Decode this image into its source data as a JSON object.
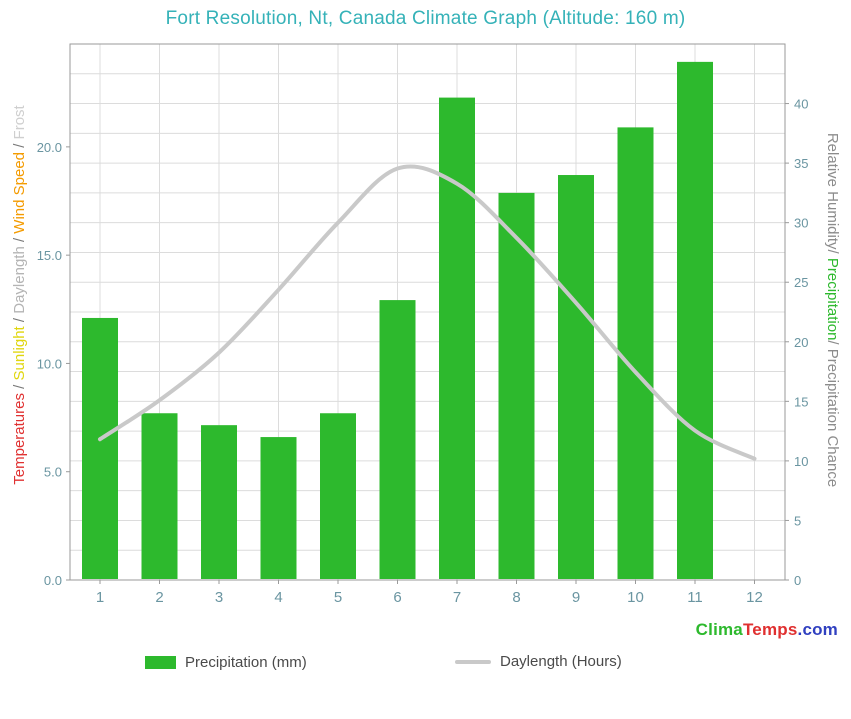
{
  "title": "Fort Resolution, Nt, Canada Climate Graph (Altitude: 160 m)",
  "logo": {
    "segments": [
      {
        "text": "Clima",
        "color": "#2db92d"
      },
      {
        "text": "Temps",
        "color": "#e03030"
      },
      {
        "text": ".com",
        "color": "#3040c0"
      }
    ]
  },
  "colors": {
    "title": "#35b2b8",
    "bar": "#2db92d",
    "line": "#c9c9c9",
    "grid": "#dcdcdc",
    "plot_border": "#9a9a9a",
    "tick_text": "#6a95a1",
    "legend_text": "#4a4a4a",
    "background": "#ffffff"
  },
  "left_axis": {
    "tick_labels": [
      "0.0",
      "5.0",
      "10.0",
      "15.0",
      "20.0"
    ],
    "tick_values": [
      0,
      5,
      10,
      15,
      20
    ],
    "label_segments": [
      {
        "text": "Temperatures",
        "color": "#e03131"
      },
      {
        "text": " / ",
        "color": "#787878"
      },
      {
        "text": "Sunlight",
        "color": "#e0d60e"
      },
      {
        "text": " / ",
        "color": "#787878"
      },
      {
        "text": "Daylength",
        "color": "#b4b4b4"
      },
      {
        "text": " / ",
        "color": "#787878"
      },
      {
        "text": "Wind Speed",
        "color": "#f49b00"
      },
      {
        "text": " / ",
        "color": "#787878"
      },
      {
        "text": "Frost",
        "color": "#cfcfcf"
      }
    ]
  },
  "right_axis": {
    "tick_labels": [
      "0",
      "5",
      "10",
      "15",
      "20",
      "25",
      "30",
      "35",
      "40"
    ],
    "tick_values": [
      0,
      5,
      10,
      15,
      20,
      25,
      30,
      35,
      40
    ],
    "label_segments": [
      {
        "text": "Relative Humidity",
        "color": "#8c8c8c"
      },
      {
        "text": "/ ",
        "color": "#8c8c8c"
      },
      {
        "text": "Precipitation",
        "color": "#2db92d"
      },
      {
        "text": "/ ",
        "color": "#8c8c8c"
      },
      {
        "text": "Precipitation Chance",
        "color": "#8c8c8c"
      }
    ]
  },
  "x_axis": {
    "tick_labels": [
      "1",
      "2",
      "3",
      "4",
      "5",
      "6",
      "7",
      "8",
      "9",
      "10",
      "11",
      "12"
    ]
  },
  "chart_data": {
    "type": "bar",
    "title": "Fort Resolution, Nt, Canada Climate Graph (Altitude: 160 m)",
    "categories": [
      1,
      2,
      3,
      4,
      5,
      6,
      7,
      8,
      9,
      10,
      11,
      12
    ],
    "series": [
      {
        "name": "Precipitation (mm)",
        "type": "bar",
        "axis": "right",
        "values": [
          22,
          14,
          13,
          12,
          14,
          23.5,
          40.5,
          32.5,
          34,
          38,
          43.5,
          0
        ]
      },
      {
        "name": "Daylength (Hours)",
        "type": "line",
        "axis": "left",
        "values": [
          6.5,
          8.3,
          10.5,
          13.4,
          16.5,
          19.0,
          18.3,
          15.8,
          12.8,
          9.6,
          6.9,
          5.6
        ]
      }
    ],
    "left_axis_range": [
      0,
      24.75
    ],
    "right_axis_range": [
      0,
      45
    ],
    "left_axis_label": "Temperatures / Sunlight / Daylength / Wind Speed / Frost",
    "right_axis_label": "Relative Humidity/ Precipitation/ Precipitation Chance",
    "grid": true,
    "legend_position": "bottom"
  }
}
